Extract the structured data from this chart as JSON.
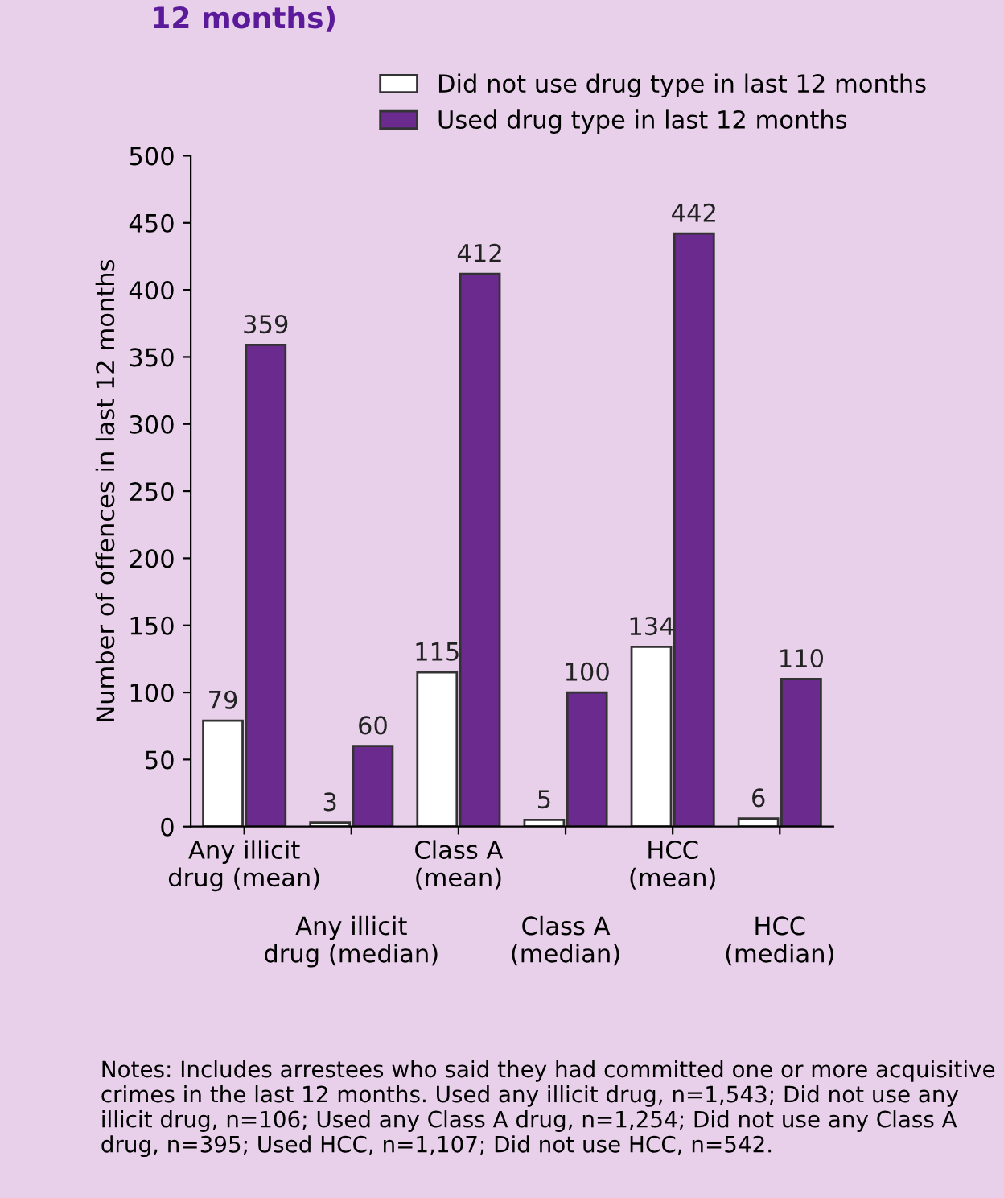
{
  "chart_data": {
    "type": "bar",
    "title": "12 months)",
    "categories": [
      "Any illicit\ndrug (mean)",
      "Any illicit\ndrug (median)",
      "Class A\n(mean)",
      "Class A\n(median)",
      "HCC\n(mean)",
      "HCC\n(median)"
    ],
    "series": [
      {
        "name": "Did not use drug type in last 12 months",
        "color": "#ffffff",
        "values": [
          79,
          3,
          115,
          5,
          134,
          6
        ]
      },
      {
        "name": "Used drug type in last 12 months",
        "color": "#6a2a8e",
        "values": [
          359,
          60,
          412,
          100,
          442,
          110
        ]
      }
    ],
    "ylabel": "Number of offences in last 12 months",
    "ylim": [
      0,
      500
    ],
    "yticks": [
      0,
      50,
      100,
      150,
      200,
      250,
      300,
      350,
      400,
      450,
      500
    ],
    "data_labels": true,
    "legend": "top right",
    "grid": false,
    "annotations": [
      "Notes: Includes arrestees who said they had committed one or more acquisitive crimes in the last 12 months. Used any illicit drug, n=1,543; Did not use any illicit drug, n=106; Used any Class A drug, n=1,254; Did not use any Class A drug, n=395; Used HCC, n=1,107; Did not use HCC, n=542."
    ]
  }
}
